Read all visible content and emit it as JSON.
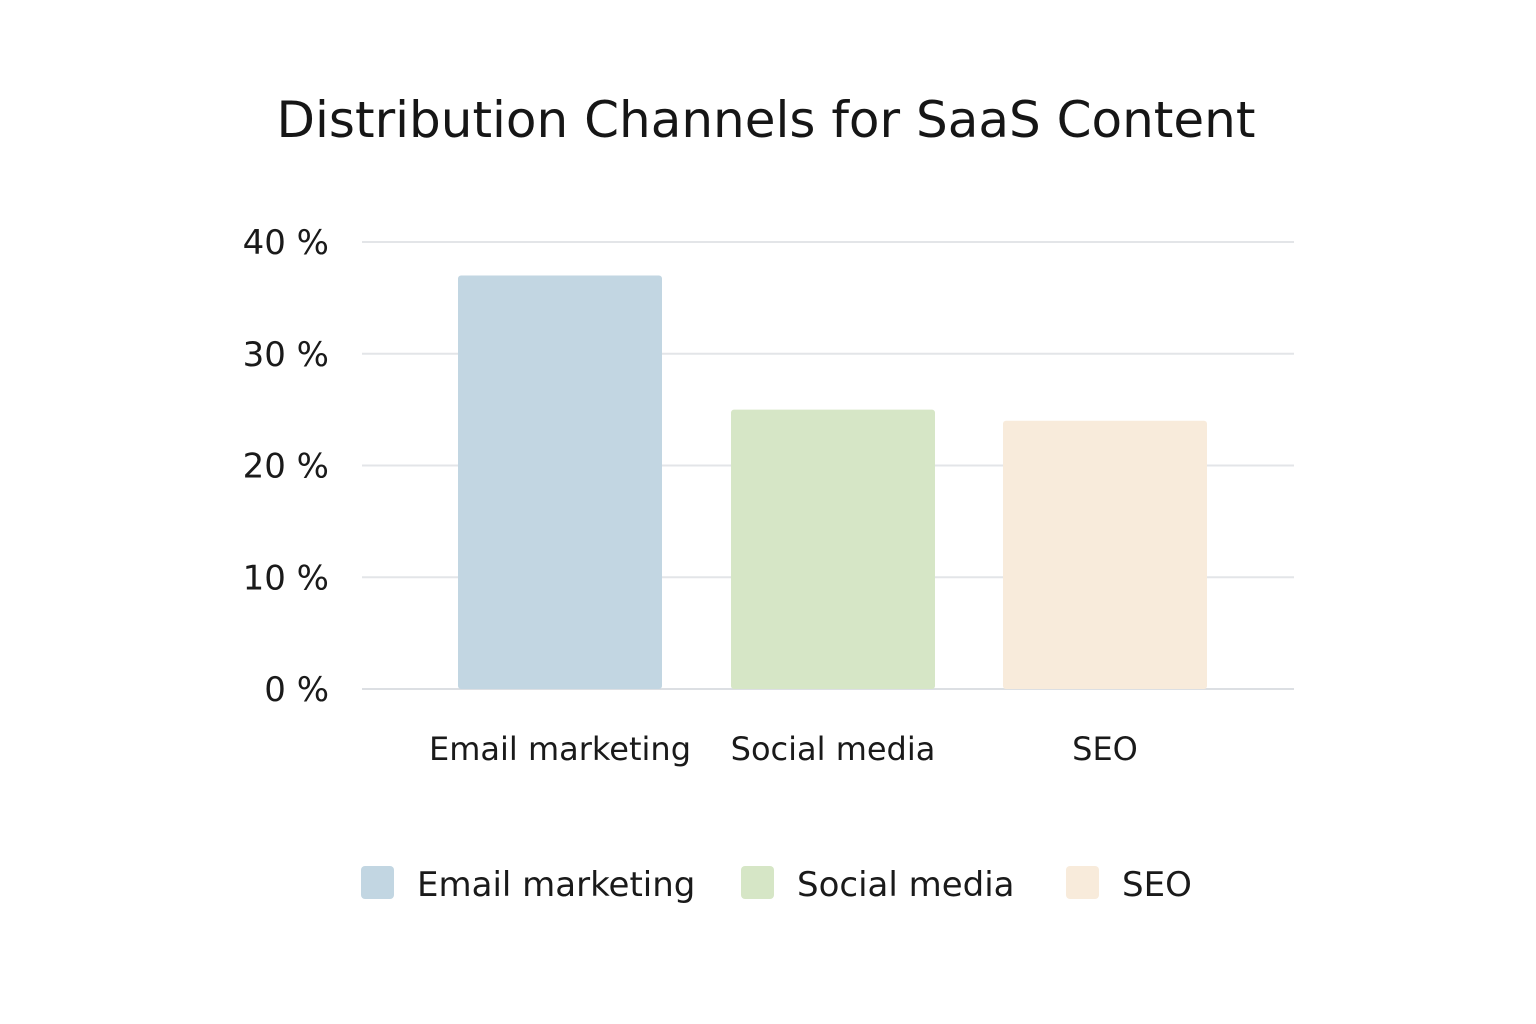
{
  "chart_data": {
    "type": "bar",
    "title": "Distribution Channels for SaaS Content",
    "categories": [
      "Email marketing",
      "Social media",
      "SEO"
    ],
    "values": [
      37,
      25,
      24
    ],
    "unit": "%",
    "ylim": [
      0,
      40
    ],
    "yticks": [
      0,
      10,
      20,
      30,
      40
    ],
    "ytick_labels": [
      "0 %",
      "10 %",
      "20 %",
      "30 %",
      "40 %"
    ],
    "grid": true,
    "legend": {
      "position": "bottom",
      "entries": [
        "Email marketing",
        "Social media",
        "SEO"
      ]
    },
    "colors": [
      "#c2d6e2",
      "#d6e6c6",
      "#f8ebdb"
    ]
  }
}
